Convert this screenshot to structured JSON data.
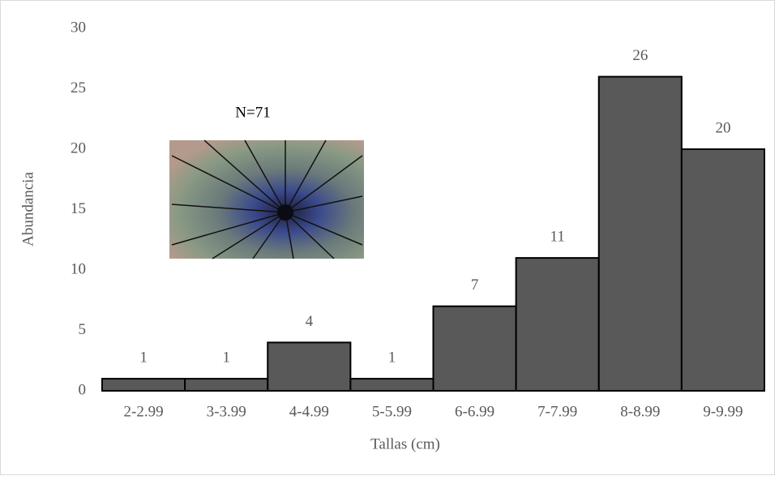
{
  "chart_data": {
    "type": "bar",
    "categories": [
      "2-2.99",
      "3-3.99",
      "4-4.99",
      "5-5.99",
      "6-6.99",
      "7-7.99",
      "8-8.99",
      "9-9.99"
    ],
    "values": [
      1,
      1,
      4,
      1,
      7,
      11,
      26,
      20
    ],
    "color": "#595959",
    "ylim": [
      0,
      30
    ],
    "yticks": [
      0,
      5,
      10,
      15,
      20,
      25,
      30
    ],
    "grid": false,
    "x_label": "Tallas (cm)",
    "y_label": "Abundancia",
    "annotation": "N=71"
  }
}
